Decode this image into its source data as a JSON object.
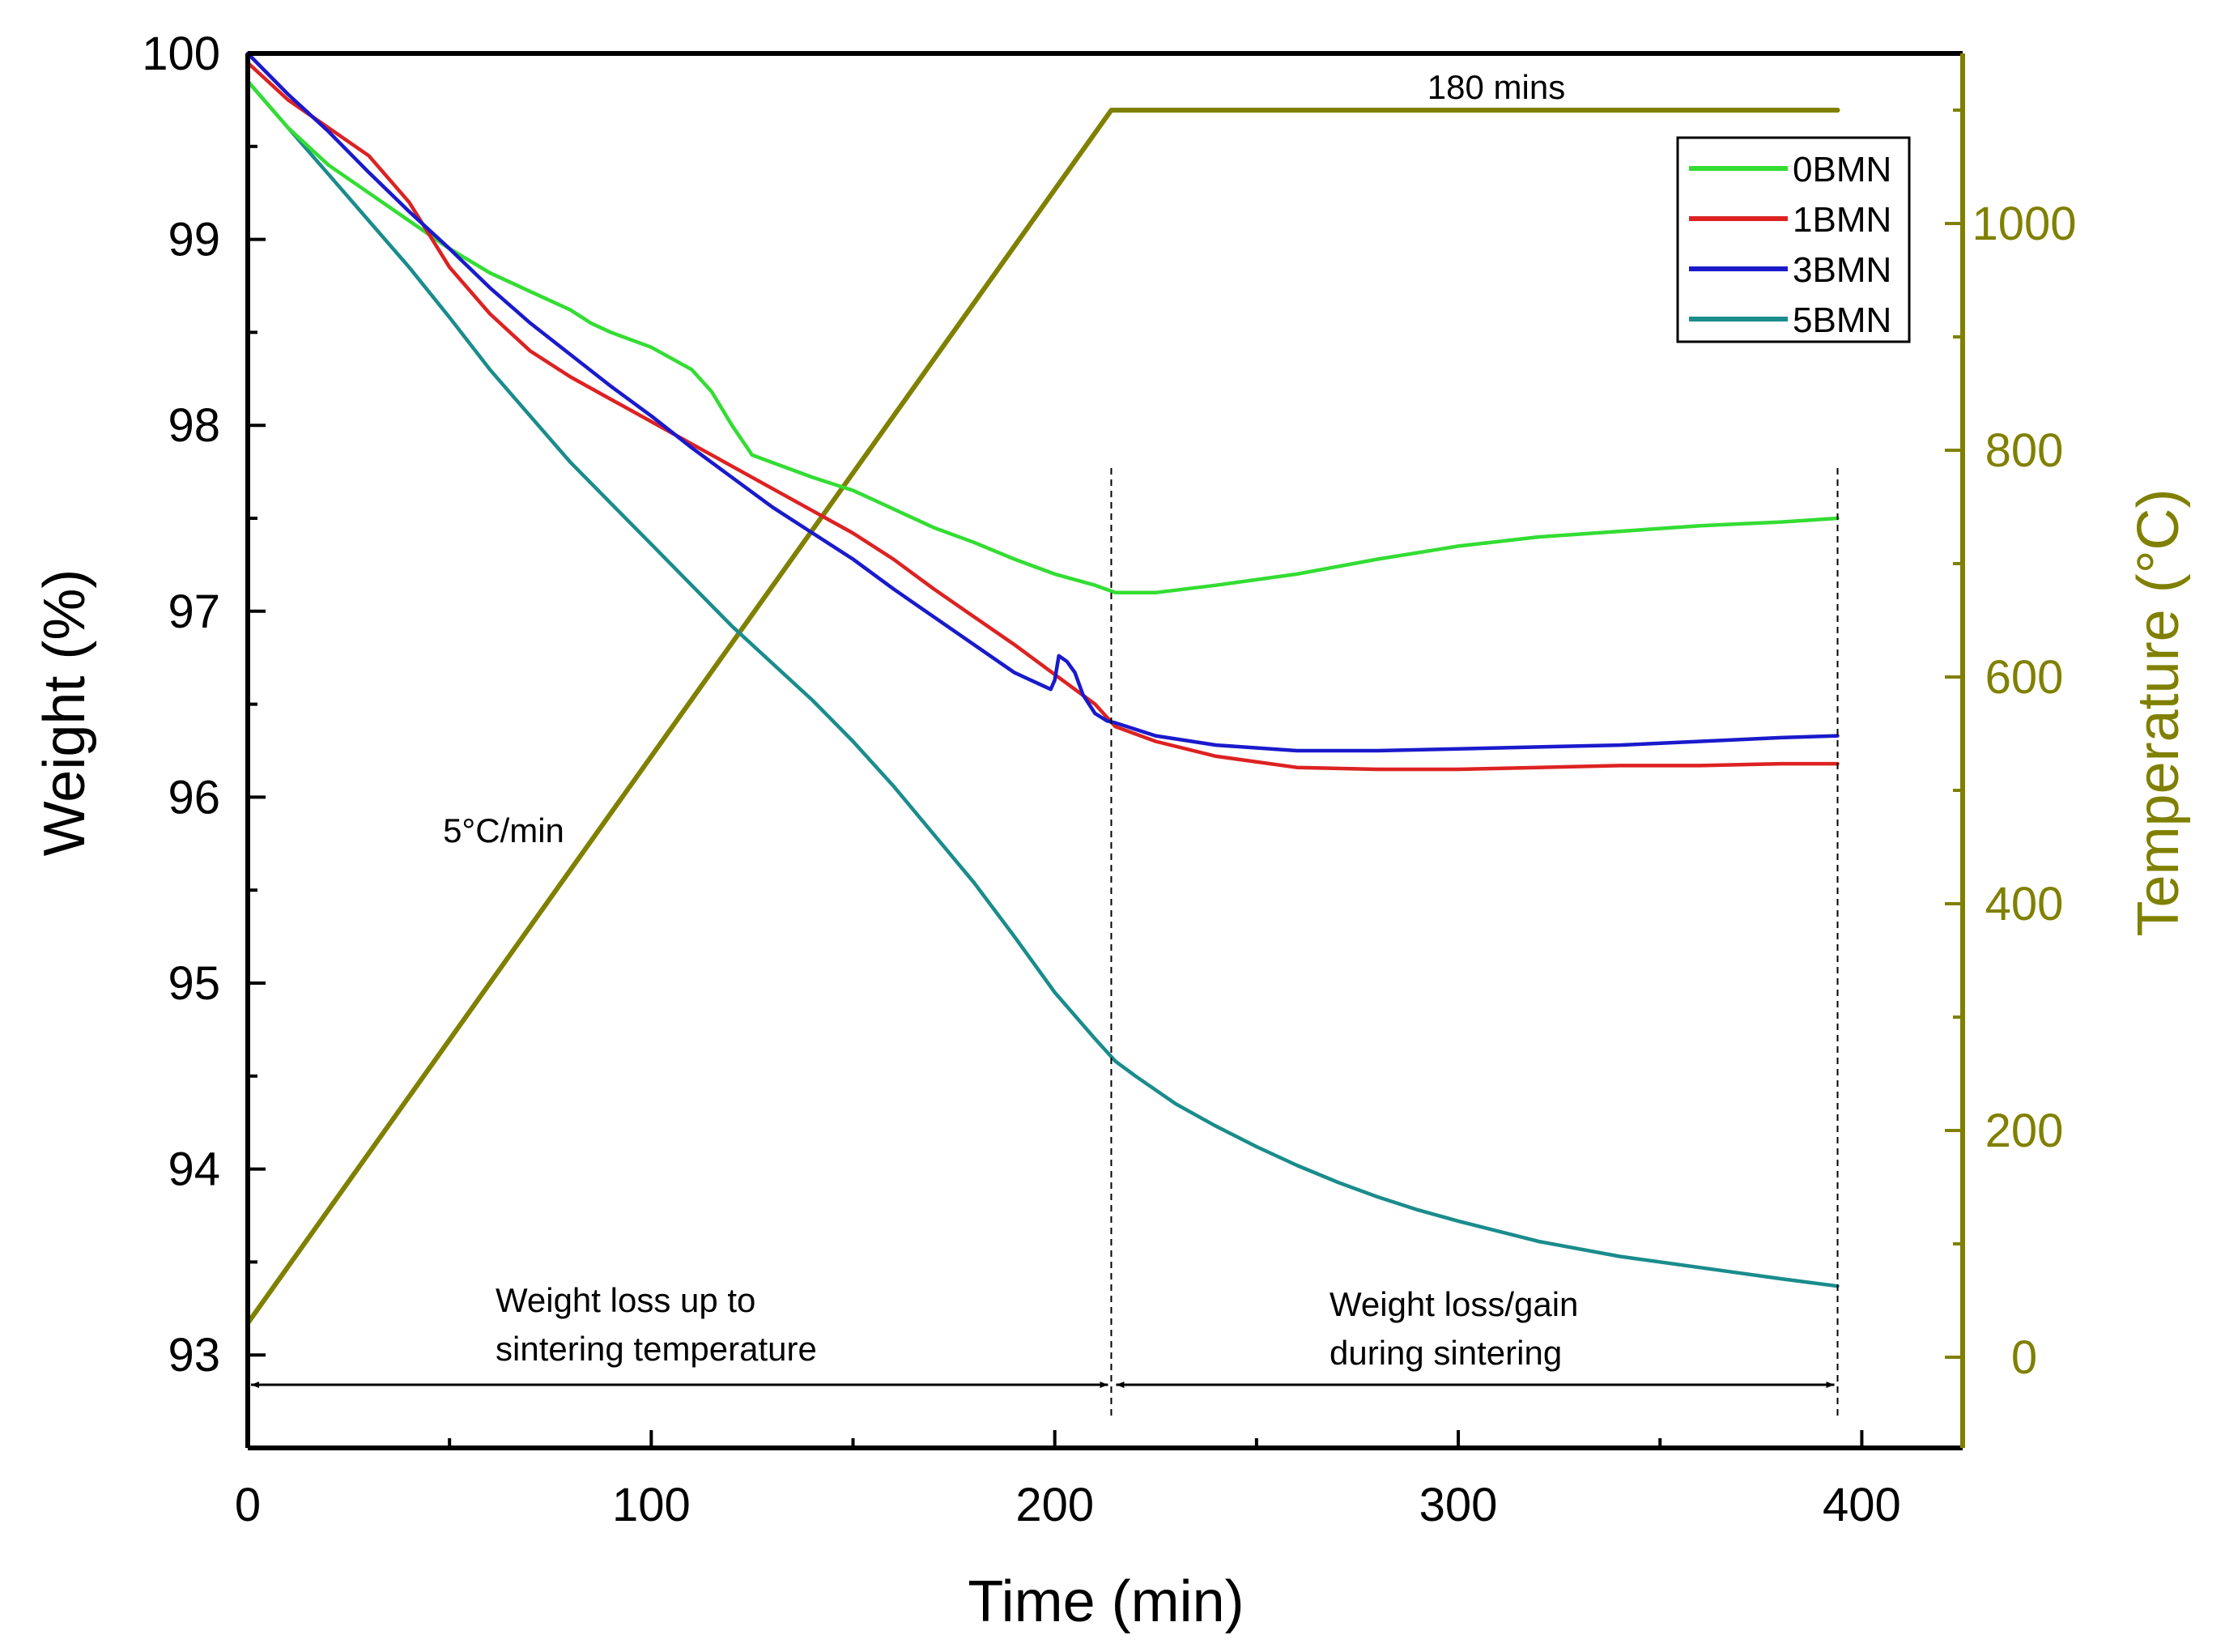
{
  "chart_data": {
    "type": "line",
    "title": "",
    "xlabel": "Time (min)",
    "ylabel": "Weight (%)",
    "y2label": "Temperature (°C)",
    "xlim": [
      0,
      425
    ],
    "ylim": [
      92.5,
      100
    ],
    "y2lim": [
      -80,
      1150
    ],
    "x_ticks": [
      0,
      100,
      200,
      300,
      400
    ],
    "x_minor_ticks": [
      50,
      150,
      250,
      350
    ],
    "y_ticks": [
      93,
      94,
      95,
      96,
      97,
      98,
      99,
      100
    ],
    "y2_ticks": [
      0,
      200,
      400,
      600,
      800,
      1000
    ],
    "legend_position": "top-right",
    "colors": {
      "0BMN": "#33dd33",
      "1BMN": "#dd2222",
      "3BMN": "#1a1acc",
      "5BMN": "#1a8c8c",
      "temperature": "#808000",
      "axis": "#000000"
    },
    "series": [
      {
        "name": "0BMN",
        "axis": "left",
        "x": [
          0,
          10,
          20,
          30,
          40,
          50,
          60,
          70,
          80,
          85,
          90,
          100,
          110,
          115,
          120,
          125,
          130,
          140,
          150,
          160,
          170,
          180,
          190,
          200,
          210,
          215,
          225,
          240,
          260,
          280,
          300,
          320,
          340,
          360,
          380,
          394
        ],
        "y": [
          99.85,
          99.6,
          99.4,
          99.25,
          99.1,
          98.95,
          98.82,
          98.72,
          98.62,
          98.55,
          98.5,
          98.42,
          98.3,
          98.18,
          98.0,
          97.84,
          97.8,
          97.72,
          97.65,
          97.55,
          97.45,
          97.37,
          97.28,
          97.2,
          97.14,
          97.1,
          97.1,
          97.14,
          97.2,
          97.28,
          97.35,
          97.4,
          97.43,
          97.46,
          97.48,
          97.5
        ]
      },
      {
        "name": "1BMN",
        "axis": "left",
        "x": [
          0,
          10,
          20,
          30,
          40,
          50,
          60,
          70,
          80,
          90,
          100,
          110,
          120,
          130,
          140,
          150,
          160,
          170,
          180,
          190,
          200,
          210,
          215,
          225,
          240,
          260,
          280,
          300,
          320,
          340,
          360,
          380,
          394
        ],
        "y": [
          99.95,
          99.75,
          99.6,
          99.45,
          99.2,
          98.85,
          98.6,
          98.4,
          98.26,
          98.14,
          98.02,
          97.9,
          97.78,
          97.66,
          97.54,
          97.42,
          97.28,
          97.12,
          96.97,
          96.82,
          96.66,
          96.5,
          96.38,
          96.3,
          96.22,
          96.16,
          96.15,
          96.15,
          96.16,
          96.17,
          96.17,
          96.18,
          96.18
        ]
      },
      {
        "name": "3BMN",
        "axis": "left",
        "x": [
          0,
          10,
          20,
          30,
          40,
          50,
          60,
          70,
          80,
          90,
          100,
          110,
          120,
          130,
          140,
          150,
          160,
          170,
          180,
          190,
          199,
          200,
          201,
          203,
          205,
          207,
          210,
          213,
          215,
          225,
          240,
          260,
          280,
          300,
          320,
          340,
          360,
          380,
          394
        ],
        "y": [
          100.0,
          99.78,
          99.58,
          99.36,
          99.15,
          98.95,
          98.74,
          98.55,
          98.38,
          98.21,
          98.05,
          97.88,
          97.72,
          97.56,
          97.42,
          97.28,
          97.12,
          96.97,
          96.82,
          96.67,
          96.58,
          96.63,
          96.76,
          96.73,
          96.67,
          96.55,
          96.45,
          96.41,
          96.4,
          96.33,
          96.28,
          96.25,
          96.25,
          96.26,
          96.27,
          96.28,
          96.3,
          96.32,
          96.33
        ]
      },
      {
        "name": "5BMN",
        "axis": "left",
        "x": [
          0,
          10,
          20,
          30,
          40,
          50,
          60,
          70,
          80,
          90,
          100,
          110,
          120,
          130,
          140,
          150,
          160,
          170,
          180,
          190,
          200,
          210,
          215,
          220,
          230,
          240,
          250,
          260,
          270,
          280,
          290,
          300,
          320,
          340,
          360,
          380,
          394
        ],
        "y": [
          99.85,
          99.6,
          99.35,
          99.1,
          98.85,
          98.58,
          98.3,
          98.05,
          97.8,
          97.58,
          97.36,
          97.14,
          96.92,
          96.72,
          96.52,
          96.3,
          96.06,
          95.8,
          95.54,
          95.25,
          94.95,
          94.7,
          94.58,
          94.5,
          94.35,
          94.23,
          94.12,
          94.02,
          93.93,
          93.85,
          93.78,
          93.72,
          93.61,
          93.53,
          93.47,
          93.41,
          93.37
        ]
      },
      {
        "name": "Temperature",
        "axis": "right",
        "x": [
          0,
          214,
          394
        ],
        "y": [
          30,
          1100,
          1100
        ]
      }
    ],
    "vertical_reference_lines": [
      214,
      394
    ],
    "annotations": [
      {
        "text": "180 mins"
      },
      {
        "text": "5°C/min"
      },
      {
        "text": "Weight loss up to"
      },
      {
        "text": "sintering temperature"
      },
      {
        "text": "Weight loss/gain"
      },
      {
        "text": "during sintering"
      }
    ]
  }
}
